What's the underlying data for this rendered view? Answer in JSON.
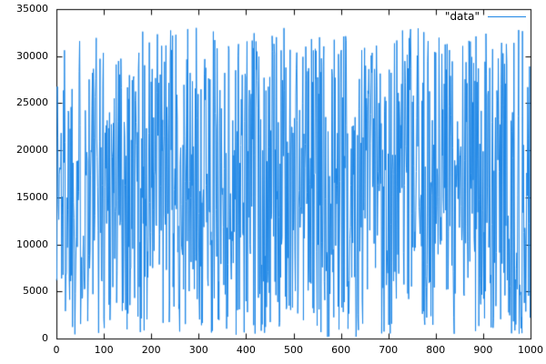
{
  "chart_data": {
    "type": "line",
    "title": "",
    "xlabel": "",
    "ylabel": "",
    "xlim": [
      0,
      1000
    ],
    "ylim": [
      0,
      35000
    ],
    "x_ticks": [
      0,
      100,
      200,
      300,
      400,
      500,
      600,
      700,
      800,
      900,
      1000
    ],
    "y_ticks": [
      0,
      5000,
      10000,
      15000,
      20000,
      25000,
      30000,
      35000
    ],
    "grid": false,
    "border": true,
    "tick_style": "inward-mirrored",
    "legend": {
      "position": "top-right",
      "entries": [
        {
          "label": "\"data\"",
          "color": "#1e86e5"
        }
      ]
    },
    "series": [
      {
        "name": "\"data\"",
        "style": "line",
        "color": "#1e86e5",
        "n_points": 1000,
        "x_start": 0,
        "x_step": 1,
        "distribution": "uniform-random",
        "value_min": 100,
        "value_max": 33000,
        "seed": 1337,
        "description": "Dense uniform random noise spanning roughly 0 to 33000 over x = 0..1000"
      }
    ],
    "colors": {
      "axis": "#000000",
      "background": "#ffffff",
      "line": "#1e86e5"
    }
  }
}
